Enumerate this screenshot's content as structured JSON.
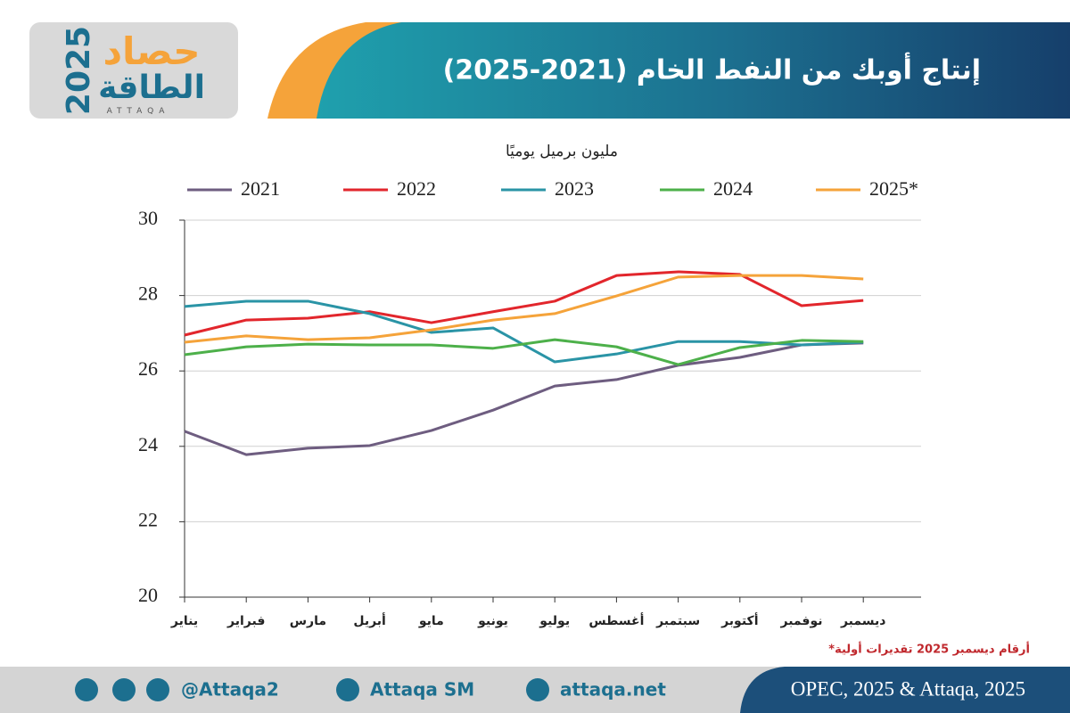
{
  "header": {
    "title": "إنتاج أوبك من النفط الخام (2021-2025)",
    "logo": {
      "word": "حصاد",
      "year": "2025",
      "brand": "الطاقة",
      "latin": "ATTAQA"
    }
  },
  "chart_data": {
    "type": "line",
    "y_label": "مليون برميل يوميًا",
    "categories": [
      "يناير",
      "فبراير",
      "مارس",
      "أبريل",
      "مايو",
      "يونيو",
      "يوليو",
      "أغسطس",
      "سبتمبر",
      "أكتوبر",
      "نوفمبر",
      "ديسمبر"
    ],
    "series": [
      {
        "name": "2021",
        "color": "#6e5d80",
        "values": [
          24.4,
          23.78,
          23.95,
          24.02,
          24.42,
          24.96,
          25.6,
          25.77,
          26.15,
          26.36,
          26.69,
          26.74
        ]
      },
      {
        "name": "2022",
        "color": "#e2262c",
        "values": [
          26.95,
          27.35,
          27.4,
          27.57,
          27.28,
          27.57,
          27.85,
          28.53,
          28.63,
          28.56,
          27.73,
          27.87
        ]
      },
      {
        "name": "2023",
        "color": "#2a94a6",
        "values": [
          27.71,
          27.85,
          27.85,
          27.52,
          27.02,
          27.14,
          26.24,
          26.45,
          26.78,
          26.78,
          26.69,
          26.76
        ]
      },
      {
        "name": "2024",
        "color": "#4db04a",
        "values": [
          26.43,
          26.64,
          26.71,
          26.69,
          26.69,
          26.6,
          26.83,
          26.64,
          26.17,
          26.62,
          26.81,
          26.78
        ]
      },
      {
        "name": "2025*",
        "color": "#f5a33a",
        "values": [
          26.76,
          26.93,
          26.83,
          26.88,
          27.09,
          27.35,
          27.52,
          27.99,
          28.49,
          28.53,
          28.53,
          28.44
        ]
      }
    ],
    "ylim": [
      20,
      30
    ],
    "yticks": [
      20,
      22,
      24,
      26,
      28,
      30
    ],
    "grid": true,
    "footnote": "*أرقام ديسمبر 2025 تقديرات أولية"
  },
  "footer": {
    "twitter": "@Attaqa2",
    "youtube": "Attaqa SM",
    "web": "attaqa.net",
    "source": "OPEC, 2025 & Attaqa, 2025"
  }
}
